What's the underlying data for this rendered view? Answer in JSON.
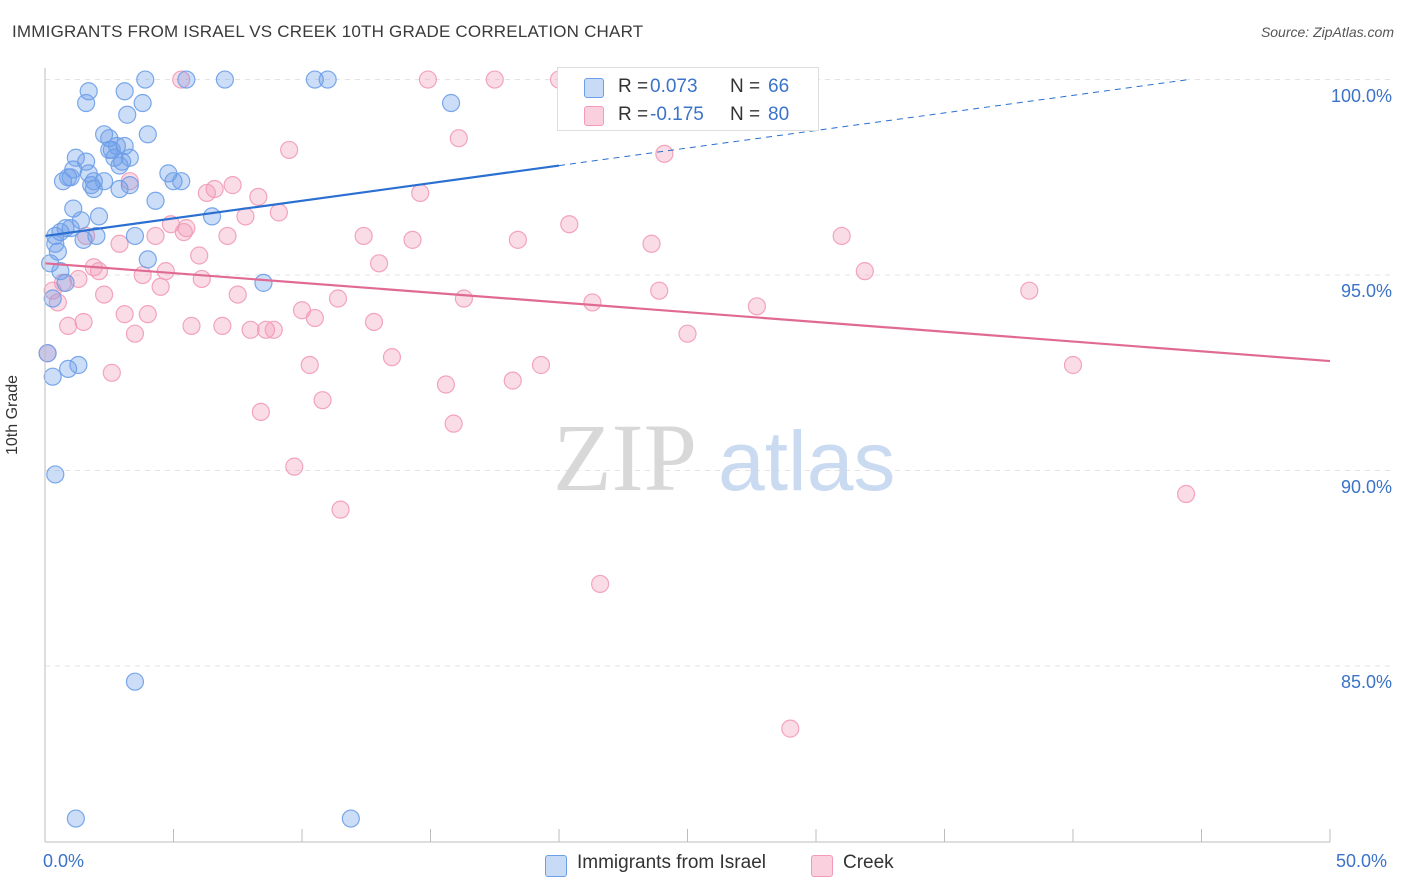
{
  "header": {
    "title": "IMMIGRANTS FROM ISRAEL VS CREEK 10TH GRADE CORRELATION CHART",
    "source": "Source: ZipAtlas.com"
  },
  "watermark": {
    "zip": "ZIP",
    "atlas": "atlas"
  },
  "legend_top": {
    "rows": [
      {
        "r_label": "R =",
        "r_value": "0.073",
        "n_label": "N =",
        "n_value": "66"
      },
      {
        "r_label": "R =",
        "r_value": "-0.175",
        "n_label": "N =",
        "n_value": "80"
      }
    ]
  },
  "chart_data": {
    "type": "scatter",
    "title": "IMMIGRANTS FROM ISRAEL VS CREEK 10TH GRADE CORRELATION CHART",
    "xlabel": "",
    "ylabel": "10th Grade",
    "xlim": [
      0,
      50
    ],
    "ylim": [
      80.5,
      100.5
    ],
    "x_tick_labels": [
      "0.0%",
      "50.0%"
    ],
    "y_ticks": [
      85,
      90,
      95,
      100
    ],
    "y_tick_labels": [
      "85.0%",
      "90.0%",
      "95.0%",
      "100.0%"
    ],
    "grid": true,
    "legend_position": "bottom",
    "colors": {
      "israel": "#6d9ee8",
      "israel_line": "#2a6fd1",
      "creek": "#f29bb6",
      "creek_line": "#e06a93",
      "tick_label": "#3b73c8"
    },
    "series": [
      {
        "name": "Immigrants from Israel",
        "r": 0.073,
        "n": 66,
        "trend": {
          "x0": 0.0,
          "y0": 96.0,
          "x1": 20.0,
          "y1": 97.8,
          "dashed_to_x": 44.5,
          "dashed_to_y": 100.0
        },
        "points": [
          [
            0.2,
            95.3
          ],
          [
            0.3,
            94.4
          ],
          [
            0.3,
            92.4
          ],
          [
            0.4,
            95.8
          ],
          [
            0.5,
            95.6
          ],
          [
            0.4,
            96.0
          ],
          [
            0.6,
            96.1
          ],
          [
            0.6,
            95.1
          ],
          [
            0.7,
            97.4
          ],
          [
            0.8,
            94.8
          ],
          [
            0.9,
            92.6
          ],
          [
            0.9,
            97.5
          ],
          [
            1.0,
            96.2
          ],
          [
            1.1,
            96.7
          ],
          [
            1.1,
            97.7
          ],
          [
            1.2,
            98.0
          ],
          [
            1.3,
            92.7
          ],
          [
            1.4,
            96.4
          ],
          [
            1.5,
            95.9
          ],
          [
            1.6,
            97.9
          ],
          [
            1.7,
            97.6
          ],
          [
            1.8,
            97.3
          ],
          [
            1.9,
            97.2
          ],
          [
            1.9,
            97.4
          ],
          [
            2.0,
            96.0
          ],
          [
            2.1,
            96.5
          ],
          [
            2.3,
            97.4
          ],
          [
            2.5,
            98.5
          ],
          [
            2.6,
            98.2
          ],
          [
            2.7,
            98.0
          ],
          [
            2.8,
            98.3
          ],
          [
            2.9,
            97.8
          ],
          [
            3.0,
            97.9
          ],
          [
            3.1,
            99.7
          ],
          [
            3.2,
            99.1
          ],
          [
            3.3,
            98.0
          ],
          [
            3.3,
            97.3
          ],
          [
            3.5,
            96.0
          ],
          [
            3.8,
            99.4
          ],
          [
            3.9,
            100.0
          ],
          [
            4.0,
            98.6
          ],
          [
            4.0,
            95.4
          ],
          [
            4.3,
            96.9
          ],
          [
            4.8,
            97.6
          ],
          [
            5.0,
            97.4
          ],
          [
            5.3,
            97.4
          ],
          [
            5.5,
            100.0
          ],
          [
            6.5,
            96.5
          ],
          [
            7.0,
            100.0
          ],
          [
            8.5,
            94.8
          ],
          [
            10.5,
            100.0
          ],
          [
            11.0,
            100.0
          ],
          [
            15.8,
            99.4
          ],
          [
            1.7,
            99.7
          ],
          [
            1.6,
            99.4
          ],
          [
            2.3,
            98.6
          ],
          [
            0.4,
            89.9
          ],
          [
            3.5,
            84.6
          ],
          [
            1.2,
            81.1
          ],
          [
            11.9,
            81.1
          ],
          [
            0.1,
            93.0
          ],
          [
            2.5,
            98.2
          ],
          [
            3.1,
            98.3
          ],
          [
            1.0,
            97.5
          ],
          [
            0.8,
            96.2
          ],
          [
            2.9,
            97.2
          ]
        ]
      },
      {
        "name": "Creek",
        "r": -0.175,
        "n": 80,
        "trend": {
          "x0": 0.0,
          "y0": 95.3,
          "x1": 50.0,
          "y1": 92.8
        },
        "points": [
          [
            0.1,
            93.0
          ],
          [
            0.3,
            94.6
          ],
          [
            0.5,
            94.3
          ],
          [
            0.7,
            94.8
          ],
          [
            0.9,
            93.7
          ],
          [
            1.3,
            94.9
          ],
          [
            1.5,
            93.8
          ],
          [
            1.6,
            96.0
          ],
          [
            1.9,
            95.2
          ],
          [
            2.1,
            95.1
          ],
          [
            2.3,
            94.5
          ],
          [
            2.6,
            92.5
          ],
          [
            2.9,
            95.8
          ],
          [
            3.1,
            94.0
          ],
          [
            3.3,
            97.4
          ],
          [
            3.5,
            93.5
          ],
          [
            3.8,
            95.0
          ],
          [
            4.0,
            94.0
          ],
          [
            4.3,
            96.0
          ],
          [
            4.5,
            94.7
          ],
          [
            4.7,
            95.1
          ],
          [
            4.9,
            96.3
          ],
          [
            5.3,
            100.0
          ],
          [
            5.4,
            96.1
          ],
          [
            5.5,
            96.2
          ],
          [
            5.7,
            93.7
          ],
          [
            6.0,
            95.5
          ],
          [
            6.1,
            94.9
          ],
          [
            6.3,
            97.1
          ],
          [
            6.6,
            97.2
          ],
          [
            6.9,
            93.7
          ],
          [
            7.1,
            96.0
          ],
          [
            7.3,
            97.3
          ],
          [
            7.5,
            94.5
          ],
          [
            7.8,
            96.5
          ],
          [
            8.0,
            93.6
          ],
          [
            8.3,
            97.0
          ],
          [
            8.4,
            91.5
          ],
          [
            8.6,
            93.6
          ],
          [
            8.9,
            93.6
          ],
          [
            9.1,
            96.6
          ],
          [
            9.5,
            98.2
          ],
          [
            9.7,
            90.1
          ],
          [
            10.0,
            94.1
          ],
          [
            10.3,
            92.7
          ],
          [
            10.5,
            93.9
          ],
          [
            10.8,
            91.8
          ],
          [
            11.4,
            94.4
          ],
          [
            11.5,
            89.0
          ],
          [
            12.4,
            96.0
          ],
          [
            12.8,
            93.8
          ],
          [
            13.0,
            95.3
          ],
          [
            13.5,
            92.9
          ],
          [
            14.3,
            95.9
          ],
          [
            14.6,
            97.1
          ],
          [
            14.9,
            100.0
          ],
          [
            15.6,
            92.2
          ],
          [
            15.9,
            91.2
          ],
          [
            16.1,
            98.5
          ],
          [
            16.3,
            94.4
          ],
          [
            17.5,
            100.0
          ],
          [
            18.2,
            92.3
          ],
          [
            18.4,
            95.9
          ],
          [
            19.3,
            92.7
          ],
          [
            20.0,
            100.0
          ],
          [
            20.4,
            96.3
          ],
          [
            21.3,
            94.3
          ],
          [
            21.6,
            87.1
          ],
          [
            23.5,
            100.0
          ],
          [
            23.6,
            95.8
          ],
          [
            23.9,
            94.6
          ],
          [
            24.1,
            98.1
          ],
          [
            25.0,
            93.5
          ],
          [
            27.7,
            94.2
          ],
          [
            29.0,
            83.4
          ],
          [
            31.0,
            96.0
          ],
          [
            31.9,
            95.1
          ],
          [
            38.3,
            94.6
          ],
          [
            40.0,
            92.7
          ],
          [
            44.4,
            89.4
          ]
        ]
      }
    ]
  }
}
